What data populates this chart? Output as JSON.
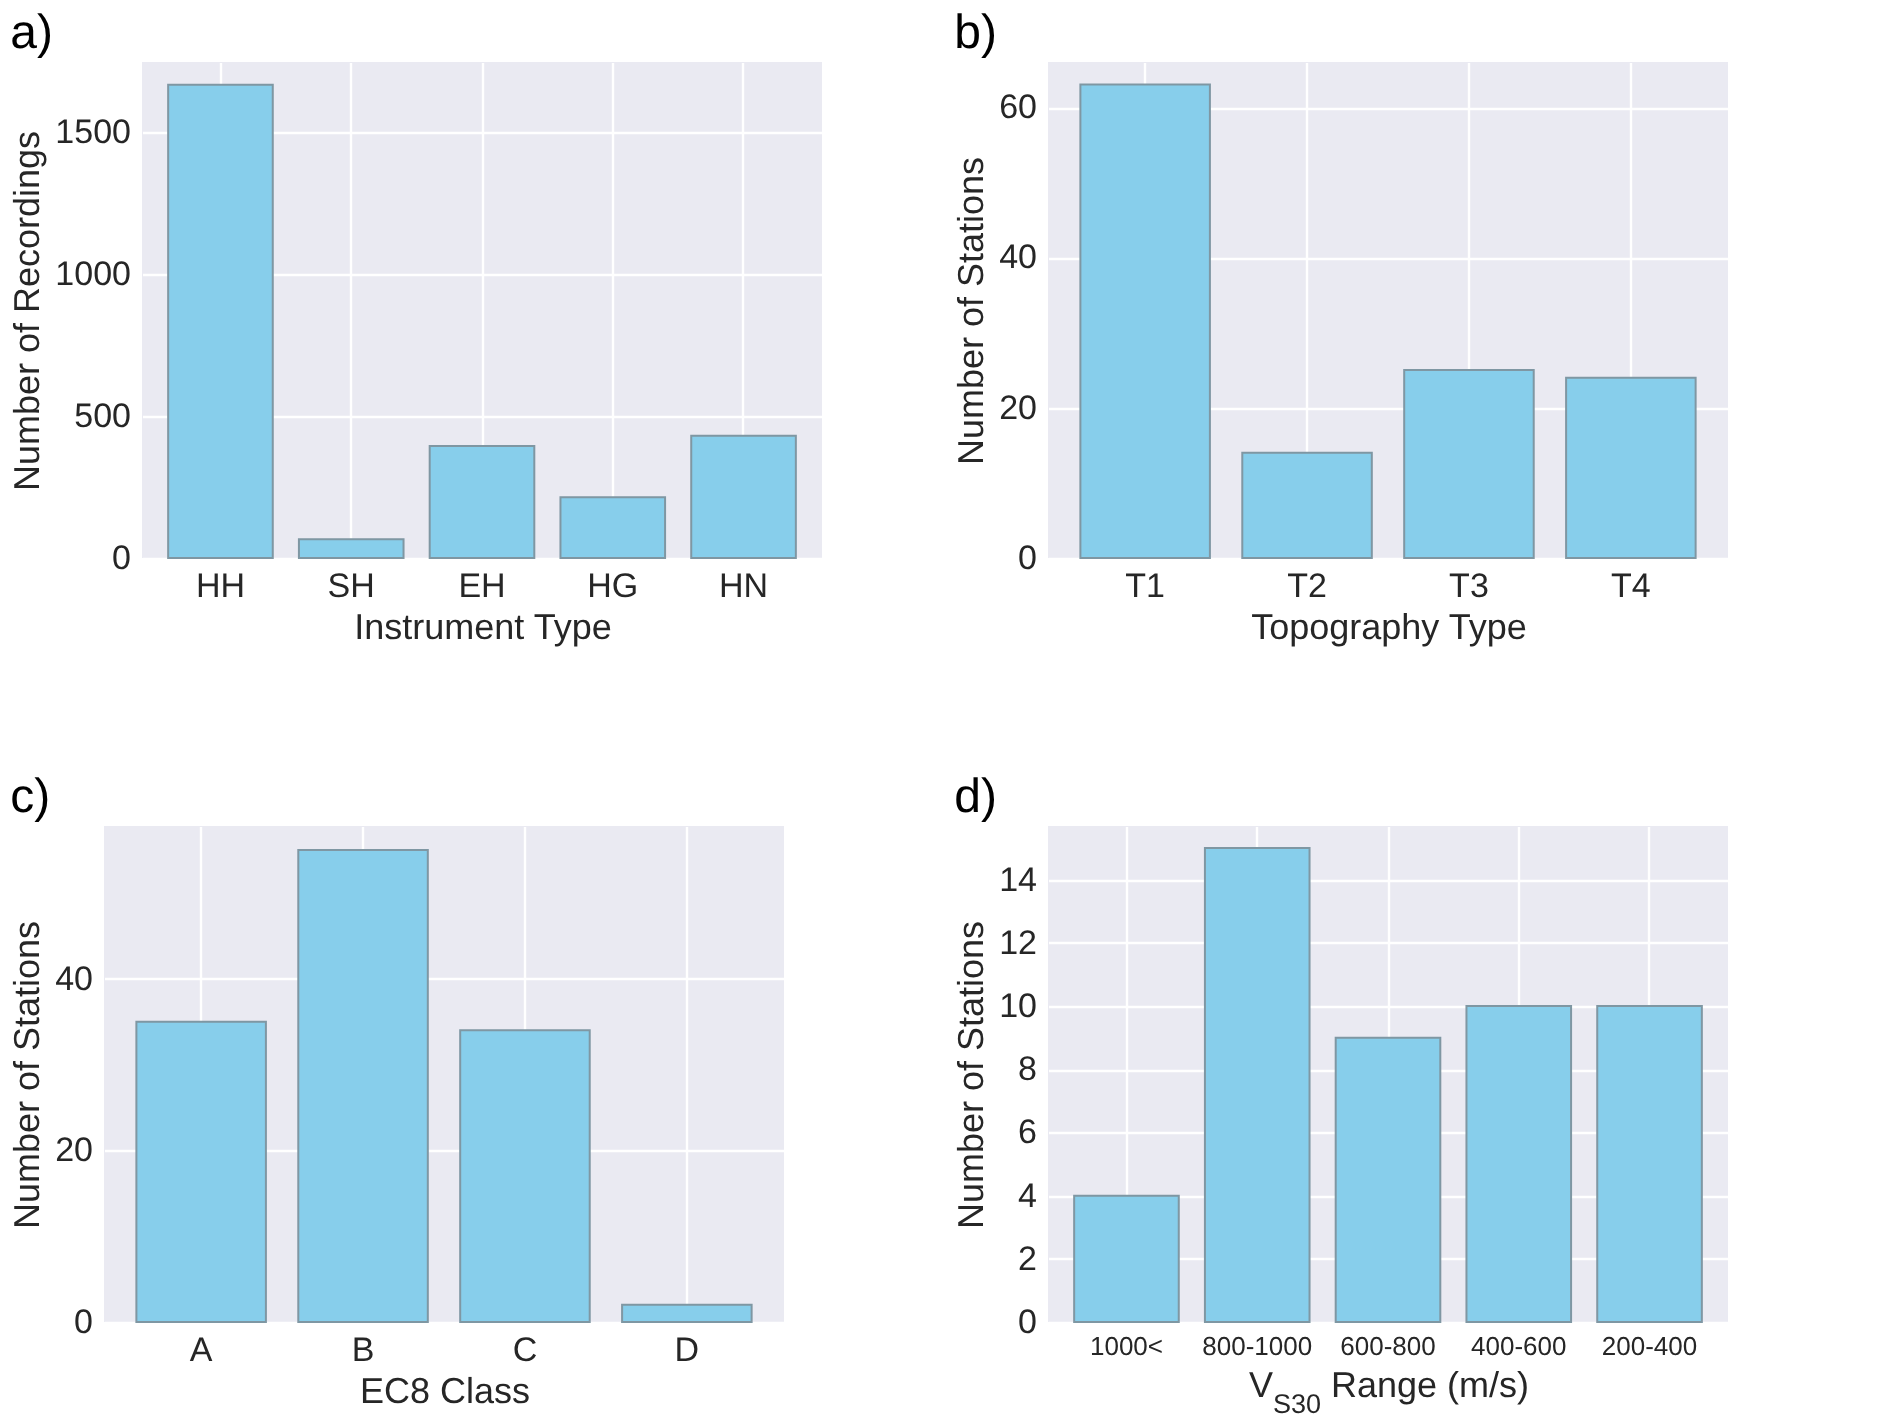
{
  "chart_data": [
    {
      "type": "bar",
      "title": "a)",
      "categories": [
        "HH",
        "SH",
        "EH",
        "HG",
        "HN"
      ],
      "values": [
        1665,
        66,
        394,
        214,
        430
      ],
      "color": "#87ceeb",
      "xlabel": "Instrument Type",
      "ylabel": "Number of Recordings",
      "ylim": [
        0,
        1745
      ],
      "yticks": [
        0,
        500,
        1000,
        1500
      ],
      "grid": true
    },
    {
      "type": "bar",
      "title": "b)",
      "categories": [
        "T1",
        "T2",
        "T3",
        "T4"
      ],
      "values": [
        63,
        14,
        25,
        24
      ],
      "color": "#87ceeb",
      "xlabel": "Topography Type",
      "ylabel": "Number of Stations",
      "ylim": [
        0,
        66
      ],
      "yticks": [
        0,
        20,
        40,
        60
      ],
      "grid": true
    },
    {
      "type": "bar",
      "title": "c)",
      "categories": [
        "A",
        "B",
        "C",
        "D"
      ],
      "values": [
        35,
        55,
        34,
        2
      ],
      "color": "#87ceeb",
      "xlabel": "EC8 Class",
      "ylabel": "Number of Stations",
      "ylim": [
        0,
        57.8
      ],
      "yticks": [
        0,
        20,
        40
      ],
      "grid": true
    },
    {
      "type": "bar",
      "title": "d)",
      "categories": [
        "1000<",
        "800-1000",
        "600-800",
        "400-600",
        "200-400"
      ],
      "values": [
        4,
        15,
        9,
        10,
        10
      ],
      "color": "#87ceeb",
      "xlabel": "V$_{S30}$ Range (m/s)",
      "ylabel": "Number of Stations",
      "ylim": [
        0,
        15.7
      ],
      "yticks": [
        0,
        2,
        4,
        6,
        8,
        10,
        12,
        14
      ],
      "grid": true
    }
  ]
}
